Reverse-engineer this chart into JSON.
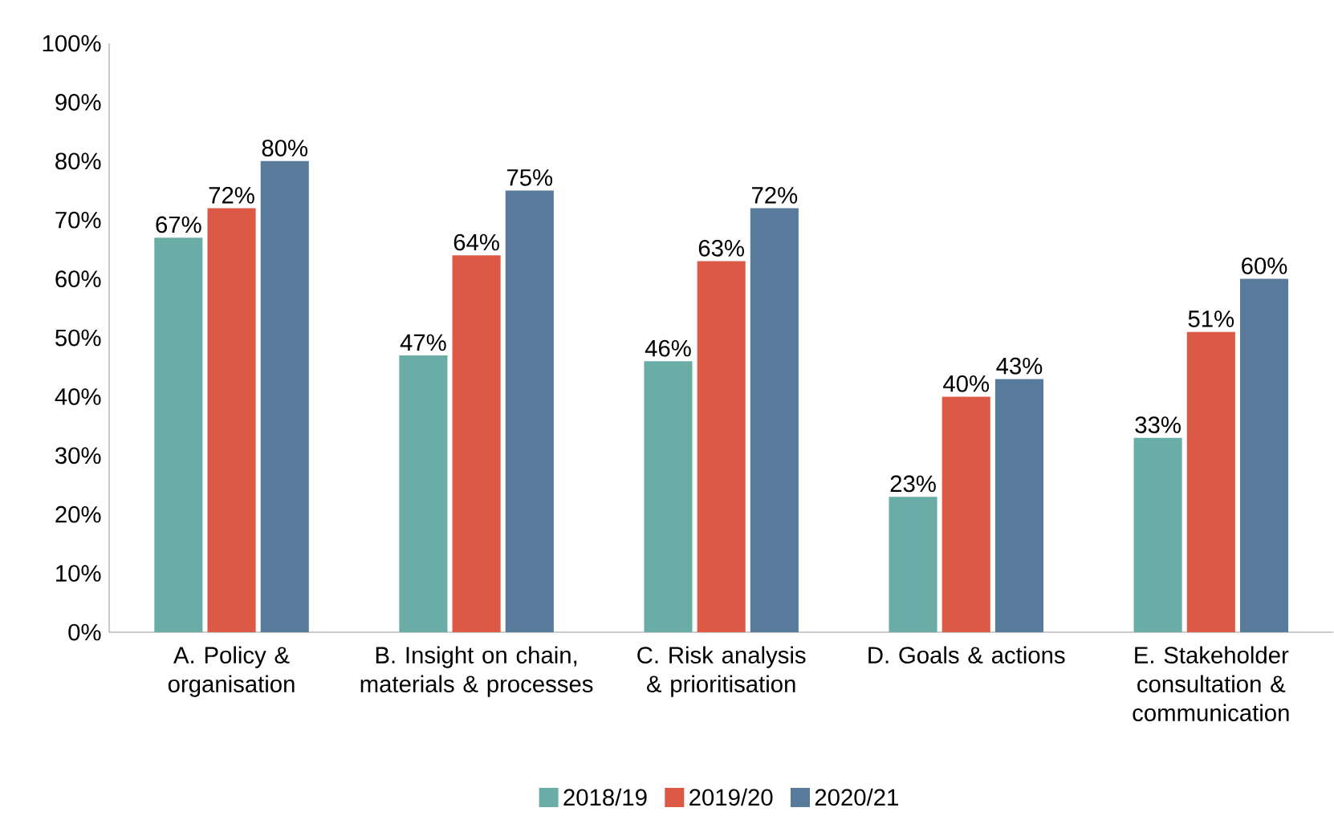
{
  "chart_data": {
    "type": "bar",
    "categories": [
      "A. Policy & organisation",
      "B. Insight on chain, materials & processes",
      "C. Risk analysis & prioritisation",
      "D. Goals & actions",
      "E. Stakeholder consultation & communication"
    ],
    "series": [
      {
        "name": "2018/19",
        "color": "#6aada6",
        "values": [
          67,
          47,
          46,
          23,
          33
        ],
        "value_labels": [
          "67%",
          "47%",
          "46%",
          "23%",
          "33%"
        ]
      },
      {
        "name": "2019/20",
        "color": "#dc5a45",
        "values": [
          72,
          64,
          63,
          40,
          51
        ],
        "value_labels": [
          "72%",
          "64%",
          "63%",
          "40%",
          "51%"
        ]
      },
      {
        "name": "2020/21",
        "color": "#587b9c",
        "values": [
          80,
          75,
          72,
          43,
          60
        ],
        "value_labels": [
          "80%",
          "75%",
          "72%",
          "43%",
          "60%"
        ]
      }
    ],
    "ylim": [
      0,
      100
    ],
    "yticks": [
      {
        "value": 0,
        "label": "0%"
      },
      {
        "value": 10,
        "label": "10%"
      },
      {
        "value": 20,
        "label": "20%"
      },
      {
        "value": 30,
        "label": "30%"
      },
      {
        "value": 40,
        "label": "40%"
      },
      {
        "value": 50,
        "label": "50%"
      },
      {
        "value": 60,
        "label": "60%"
      },
      {
        "value": 70,
        "label": "70%"
      },
      {
        "value": 80,
        "label": "80%"
      },
      {
        "value": 90,
        "label": "90%"
      },
      {
        "value": 100,
        "label": "100%"
      }
    ],
    "grid": false,
    "legend": "bottom"
  }
}
